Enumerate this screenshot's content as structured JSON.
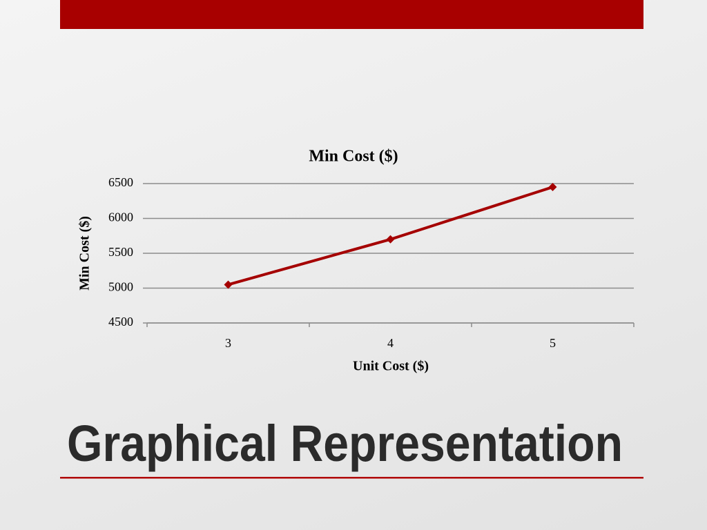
{
  "slide_title": "Graphical Representation",
  "chart_data": {
    "type": "line",
    "title": "Min Cost ($)",
    "x_label": "Unit Cost ($)",
    "y_label": "Min Cost ($)",
    "categories": [
      "3",
      "4",
      "5"
    ],
    "values": [
      5050,
      5700,
      6450
    ],
    "color": "#a50000",
    "ylim": [
      4500,
      6500
    ],
    "yticks": [
      4500,
      5000,
      5500,
      6000,
      6500
    ],
    "grid": true
  }
}
